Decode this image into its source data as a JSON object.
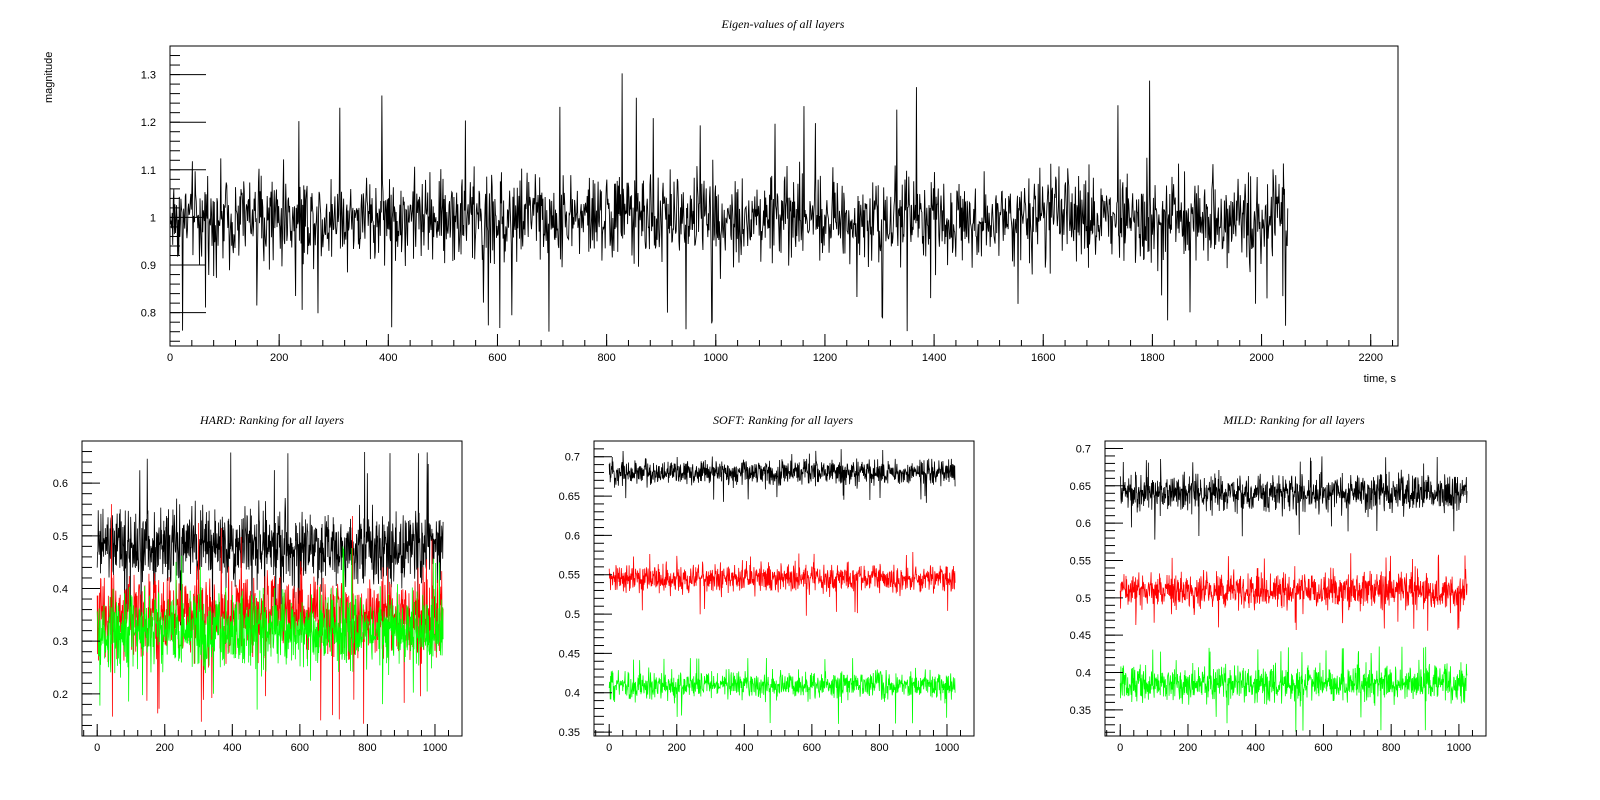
{
  "chart_data": [
    {
      "type": "line",
      "title": "Eigen-values of all layers",
      "xlabel": "time, s",
      "ylabel": "magnitude",
      "xlim": [
        0,
        2250
      ],
      "ylim": [
        0.73,
        1.36
      ],
      "xticks": [
        0,
        200,
        400,
        600,
        800,
        1000,
        1200,
        1400,
        1600,
        1800,
        2000,
        2200
      ],
      "yticks": [
        0.8,
        0.9,
        1,
        1.1,
        1.2,
        1.3
      ],
      "grid": false,
      "series": [
        {
          "color": "#000000",
          "x_range": [
            0,
            2048
          ],
          "center": 1.0,
          "band": [
            0.87,
            1.13
          ],
          "extremes": [
            0.76,
            1.31
          ]
        }
      ]
    },
    {
      "type": "line",
      "title": "HARD: Ranking for all layers",
      "xlabel": "",
      "ylabel": "",
      "xlim": [
        -45,
        1080
      ],
      "ylim": [
        0.12,
        0.68
      ],
      "xticks": [
        0,
        200,
        400,
        600,
        800,
        1000
      ],
      "yticks": [
        0.2,
        0.3,
        0.4,
        0.5,
        0.6
      ],
      "grid": false,
      "series": [
        {
          "color": "#000000",
          "x_range": [
            0,
            1024
          ],
          "center": 0.48,
          "band": [
            0.38,
            0.58
          ],
          "extremes": [
            0.33,
            0.66
          ]
        },
        {
          "color": "#ff0000",
          "x_range": [
            0,
            1024
          ],
          "center": 0.35,
          "band": [
            0.23,
            0.45
          ],
          "extremes": [
            0.14,
            0.57
          ]
        },
        {
          "color": "#00ff00",
          "x_range": [
            0,
            1024
          ],
          "center": 0.32,
          "band": [
            0.22,
            0.42
          ],
          "extremes": [
            0.17,
            0.48
          ]
        }
      ]
    },
    {
      "type": "line",
      "title": "SOFT: Ranking for all layers",
      "xlabel": "",
      "ylabel": "",
      "xlim": [
        -45,
        1080
      ],
      "ylim": [
        0.345,
        0.72
      ],
      "xticks": [
        0,
        200,
        400,
        600,
        800,
        1000
      ],
      "yticks": [
        0.35,
        0.4,
        0.45,
        0.5,
        0.55,
        0.6,
        0.65,
        0.7
      ],
      "grid": false,
      "series": [
        {
          "color": "#000000",
          "x_range": [
            0,
            1024
          ],
          "center": 0.68,
          "band": [
            0.655,
            0.7
          ],
          "extremes": [
            0.64,
            0.71
          ]
        },
        {
          "color": "#ff0000",
          "x_range": [
            0,
            1024
          ],
          "center": 0.545,
          "band": [
            0.52,
            0.57
          ],
          "extremes": [
            0.495,
            0.58
          ]
        },
        {
          "color": "#00ff00",
          "x_range": [
            0,
            1024
          ],
          "center": 0.41,
          "band": [
            0.385,
            0.435
          ],
          "extremes": [
            0.36,
            0.445
          ]
        }
      ]
    },
    {
      "type": "line",
      "title": "MILD: Ranking for all layers",
      "xlabel": "",
      "ylabel": "",
      "xlim": [
        -45,
        1080
      ],
      "ylim": [
        0.315,
        0.71
      ],
      "xticks": [
        0,
        200,
        400,
        600,
        800,
        1000
      ],
      "yticks": [
        0.35,
        0.4,
        0.45,
        0.5,
        0.55,
        0.6,
        0.65,
        0.7
      ],
      "grid": false,
      "series": [
        {
          "color": "#000000",
          "x_range": [
            0,
            1024
          ],
          "center": 0.64,
          "band": [
            0.605,
            0.675
          ],
          "extremes": [
            0.575,
            0.69
          ]
        },
        {
          "color": "#ff0000",
          "x_range": [
            0,
            1024
          ],
          "center": 0.51,
          "band": [
            0.475,
            0.545
          ],
          "extremes": [
            0.455,
            0.56
          ]
        },
        {
          "color": "#00ff00",
          "x_range": [
            0,
            1024
          ],
          "center": 0.385,
          "band": [
            0.35,
            0.42
          ],
          "extremes": [
            0.32,
            0.435
          ]
        }
      ]
    }
  ]
}
